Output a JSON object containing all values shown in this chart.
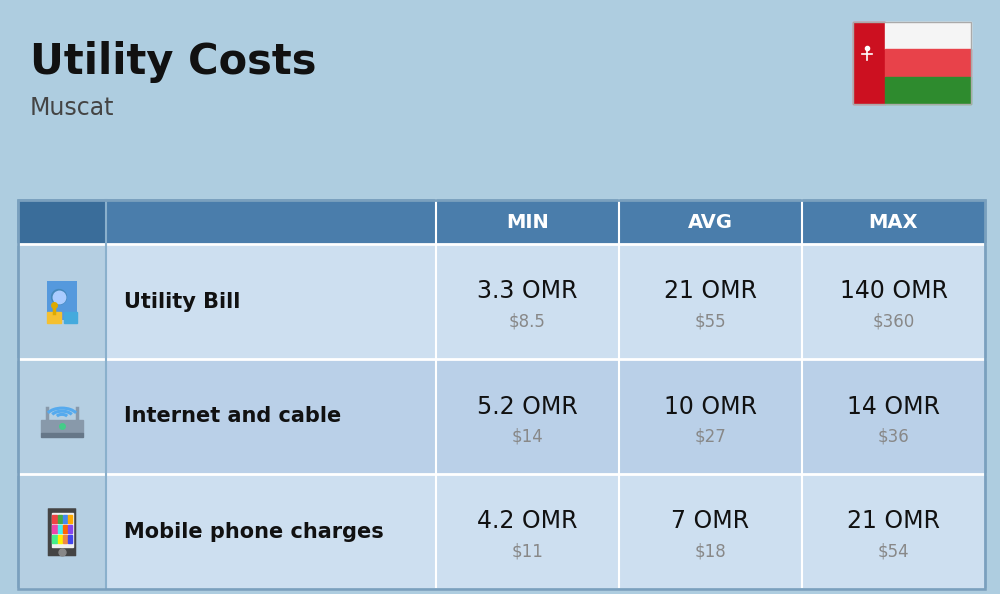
{
  "title": "Utility Costs",
  "subtitle": "Muscat",
  "background_color": "#aecde0",
  "table_header_color": "#4a7dab",
  "table_header_text_color": "#ffffff",
  "table_row_color_odd": "#cddff0",
  "table_row_color_even": "#bad0e8",
  "table_icon_col_color": "#b8cfe0",
  "header_labels": [
    "MIN",
    "AVG",
    "MAX"
  ],
  "rows": [
    {
      "label": "Utility Bill",
      "min_omr": "3.3 OMR",
      "min_usd": "$8.5",
      "avg_omr": "21 OMR",
      "avg_usd": "$55",
      "max_omr": "140 OMR",
      "max_usd": "$360"
    },
    {
      "label": "Internet and cable",
      "min_omr": "5.2 OMR",
      "min_usd": "$14",
      "avg_omr": "10 OMR",
      "avg_usd": "$27",
      "max_omr": "14 OMR",
      "max_usd": "$36"
    },
    {
      "label": "Mobile phone charges",
      "min_omr": "4.2 OMR",
      "min_usd": "$11",
      "avg_omr": "7 OMR",
      "avg_usd": "$18",
      "max_omr": "21 OMR",
      "max_usd": "$54"
    }
  ],
  "omr_fontsize": 17,
  "usd_fontsize": 12,
  "label_fontsize": 15,
  "header_fontsize": 14,
  "title_fontsize": 30,
  "subtitle_fontsize": 17,
  "usd_color": "#888888",
  "label_color": "#111111",
  "omr_color": "#111111"
}
